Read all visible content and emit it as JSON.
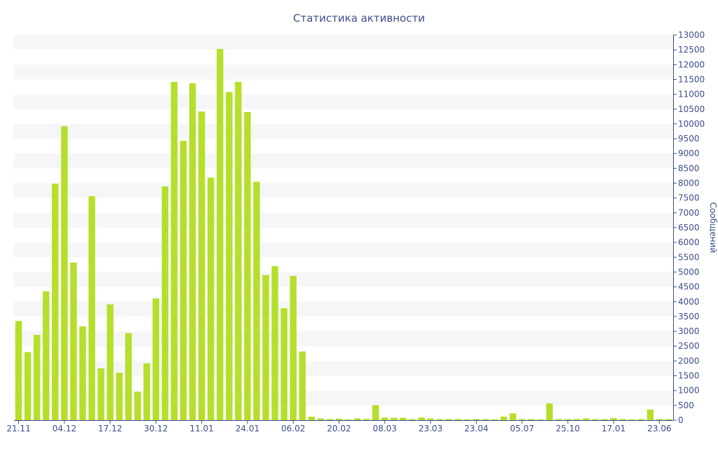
{
  "chart_data": {
    "type": "bar",
    "title": "Статистика активности",
    "xlabel": "",
    "ylabel": "Сообщений",
    "ylim": [
      0,
      13000
    ],
    "ytick_step": 500,
    "y_axis_side": "right",
    "grid": true,
    "legend": "none",
    "x_tick_labels": [
      "21.11",
      "04.12",
      "17.12",
      "30.12",
      "11.01",
      "24.01",
      "06.02",
      "20.02",
      "08.03",
      "23.03",
      "23.04",
      "05.07",
      "25.10",
      "17.01",
      "23.06"
    ],
    "x_tick_label_bar_index": [
      0,
      5,
      10,
      15,
      20,
      25,
      30,
      35,
      40,
      45,
      50,
      55,
      60,
      65,
      70
    ],
    "values": [
      3350,
      2300,
      2880,
      4350,
      7980,
      9920,
      5320,
      3170,
      7560,
      1750,
      3910,
      1600,
      2940,
      960,
      1920,
      4110,
      7890,
      11420,
      9430,
      11370,
      10420,
      8190,
      12530,
      11080,
      11420,
      10400,
      8050,
      4900,
      5200,
      3780,
      4870,
      2320,
      120,
      60,
      40,
      50,
      30,
      60,
      40,
      510,
      90,
      80,
      80,
      40,
      90,
      60,
      40,
      40,
      40,
      30,
      40,
      40,
      30,
      120,
      230,
      40,
      40,
      30,
      570,
      40,
      40,
      40,
      60,
      40,
      40,
      70,
      40,
      30,
      40,
      360,
      40,
      40
    ]
  },
  "colors": {
    "bar": "#b5df2b",
    "band_odd": "#f6f6f6",
    "band_even": "#ffffff",
    "axis": "#3c4d8c",
    "title": "#3c4d8c",
    "tick_text": "#3c4d8c"
  }
}
